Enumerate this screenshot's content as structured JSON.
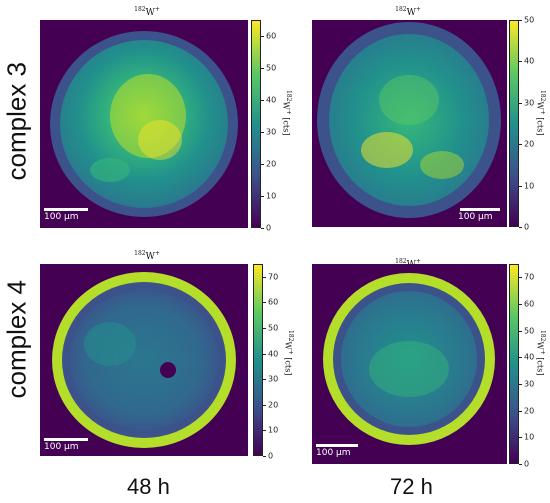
{
  "rows": [
    {
      "label": "complex 3"
    },
    {
      "label": "complex 4"
    }
  ],
  "columns": [
    {
      "label": "48 h"
    },
    {
      "label": "72 h"
    }
  ],
  "panels": [
    {
      "title_sup": "182",
      "title_main": "W",
      "title_charge": "+",
      "scalebar": "100 μm",
      "colorbar": {
        "ticks": [
          "0",
          "10",
          "20",
          "30",
          "40",
          "50",
          "60"
        ],
        "max": 65,
        "title_sup": "182",
        "title_main": "W",
        "title_charge": "+",
        "unit": "[cts]"
      }
    },
    {
      "title_sup": "182",
      "title_main": "W",
      "title_charge": "+",
      "scalebar": "100 μm",
      "colorbar": {
        "ticks": [
          "0",
          "10",
          "20",
          "30",
          "40",
          "50"
        ],
        "max": 50,
        "title_sup": "182",
        "title_main": "W",
        "title_charge": "+",
        "unit": "[cts]"
      }
    },
    {
      "title_sup": "182",
      "title_main": "W",
      "title_charge": "+",
      "scalebar": "100 μm",
      "colorbar": {
        "ticks": [
          "0",
          "10",
          "20",
          "30",
          "40",
          "50",
          "60",
          "70"
        ],
        "max": 75,
        "title_sup": "182",
        "title_main": "W",
        "title_charge": "+",
        "unit": "[cts]"
      }
    },
    {
      "title_sup": "182",
      "title_main": "W",
      "title_charge": "+",
      "scalebar": "100 μm",
      "colorbar": {
        "ticks": [
          "0",
          "10",
          "20",
          "30",
          "40",
          "50",
          "60",
          "70"
        ],
        "max": 75,
        "title_sup": "182",
        "title_main": "W",
        "title_charge": "+",
        "unit": "[cts]"
      }
    }
  ],
  "colors": {
    "viridis_dark": "#440154",
    "viridis_blue": "#31688e",
    "viridis_teal": "#21918c",
    "viridis_green": "#5ec962",
    "viridis_yellow": "#fde725"
  }
}
